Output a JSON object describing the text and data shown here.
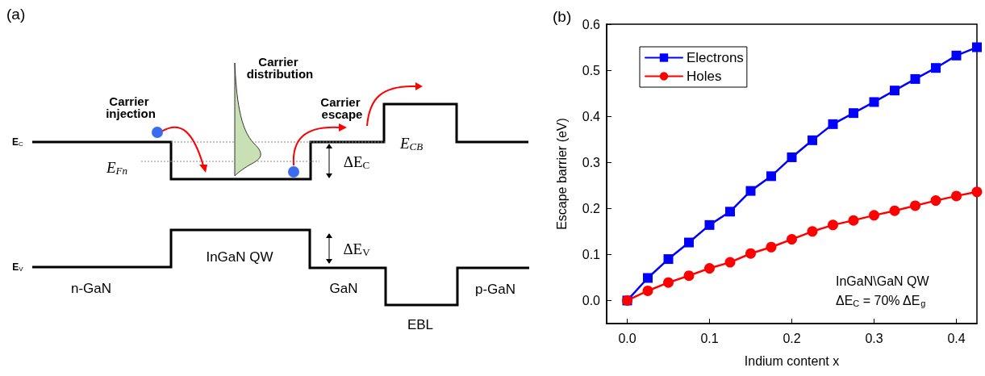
{
  "chart_data": [
    {
      "type": "other",
      "title": "(a)",
      "annotations": [
        "Carrier injection",
        "Carrier distribution",
        "Carrier escape",
        "E$_{C}$",
        "E$_{V}$",
        "E$_{Fn}$",
        "E$_{CB}$",
        "ΔE$_{C}$",
        "ΔE$_{V}$",
        "InGaN QW",
        "n-GaN",
        "GaN",
        "EBL",
        "p-GaN"
      ]
    },
    {
      "type": "line",
      "title": "(b)",
      "xlabel": "Indium content x",
      "ylabel": "Escape barrier (eV)",
      "x": [
        0,
        0.025,
        0.05,
        0.075,
        0.1,
        0.125,
        0.15,
        0.175,
        0.2,
        0.225,
        0.25,
        0.275,
        0.3,
        0.325,
        0.35,
        0.375,
        0.4,
        0.425
      ],
      "series": [
        {
          "name": "Electrons",
          "color": "#0000ff",
          "marker": "square",
          "values": [
            0,
            0.049,
            0.09,
            0.126,
            0.164,
            0.193,
            0.238,
            0.27,
            0.311,
            0.348,
            0.383,
            0.407,
            0.431,
            0.456,
            0.481,
            0.505,
            0.532,
            0.55
          ]
        },
        {
          "name": "Holes",
          "color": "#ff0000",
          "marker": "circle",
          "values": [
            0,
            0.021,
            0.039,
            0.054,
            0.07,
            0.083,
            0.102,
            0.116,
            0.133,
            0.15,
            0.164,
            0.174,
            0.185,
            0.195,
            0.206,
            0.217,
            0.227,
            0.236
          ]
        }
      ],
      "xlim": [
        -0.025,
        0.425
      ],
      "ylim": [
        -0.05,
        0.6
      ],
      "xticks": [
        {
          "value": 0,
          "label": "0.0"
        },
        0.1,
        0.2,
        0.3,
        0.4
      ],
      "yticks": [
        {
          "value": 0,
          "label": "0.0"
        },
        0.1,
        0.2,
        0.3,
        0.4,
        0.5,
        0.6
      ],
      "legend": "top left",
      "grid": false,
      "annotations": [
        "InGaN\\GaN QW",
        "ΔE$_{C}$ = 70% ΔE$_{g}$"
      ]
    }
  ]
}
